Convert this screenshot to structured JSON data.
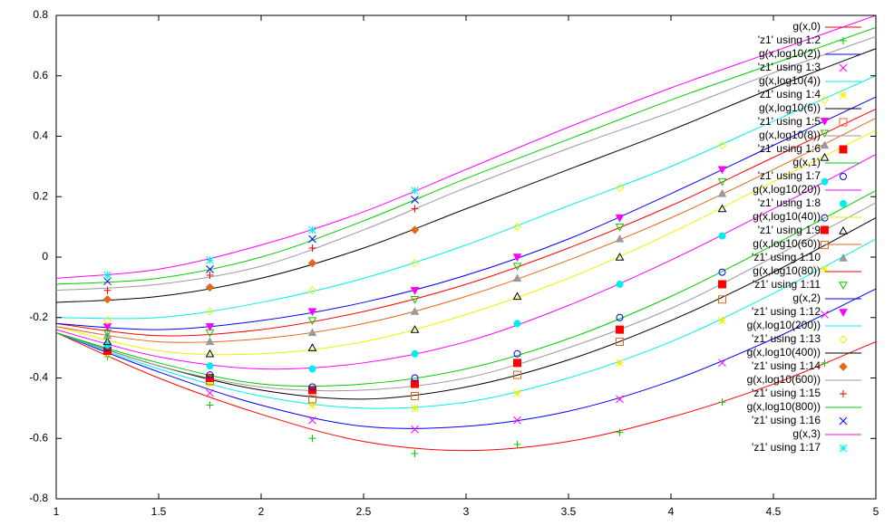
{
  "chart_data": {
    "type": "line",
    "xlim": [
      1,
      5
    ],
    "ylim": [
      -0.8,
      0.8
    ],
    "xticks": [
      1,
      1.5,
      2,
      2.5,
      3,
      3.5,
      4,
      4.5,
      5
    ],
    "yticks": [
      -0.8,
      -0.6,
      -0.4,
      -0.2,
      0,
      0.2,
      0.4,
      0.6,
      0.8
    ],
    "grid": false,
    "legend": "top-right",
    "series": [
      {
        "name": "g(x,0)",
        "type": "line",
        "color": "#ff0000",
        "x": [
          1,
          1.5,
          2,
          2.5,
          3,
          3.5,
          4,
          4.5,
          5
        ],
        "values": [
          -0.25,
          -0.4,
          -0.52,
          -0.61,
          -0.64,
          -0.61,
          -0.53,
          -0.42,
          -0.28
        ]
      },
      {
        "name": "'z1' using 1:2",
        "type": "scatter",
        "marker": "plus",
        "color": "#00cc00",
        "x": [
          1.25,
          1.75,
          2.25,
          2.75,
          3.25,
          3.75,
          4.25,
          4.75
        ],
        "values": [
          -0.33,
          -0.49,
          -0.6,
          -0.65,
          -0.62,
          -0.58,
          -0.48,
          -0.35
        ]
      },
      {
        "name": "g(x,log10(2))",
        "type": "line",
        "color": "#0000ff",
        "x": [
          1,
          1.5,
          2,
          2.5,
          3,
          3.5,
          4,
          4.5,
          5
        ],
        "values": [
          -0.25,
          -0.38,
          -0.49,
          -0.56,
          -0.56,
          -0.51,
          -0.41,
          -0.27,
          -0.105
        ]
      },
      {
        "name": "'z1' using 1:3",
        "type": "scatter",
        "marker": "cross",
        "color": "#ff00ff",
        "x": [
          1.25,
          1.75,
          2.25,
          2.75,
          3.25,
          3.75,
          4.25,
          4.75
        ],
        "values": [
          -0.32,
          -0.45,
          -0.54,
          -0.57,
          -0.54,
          -0.47,
          -0.35,
          -0.19
        ]
      },
      {
        "name": "g(x,log10(4))",
        "type": "line",
        "color": "#00eeee",
        "x": [
          1,
          1.5,
          2,
          2.5,
          3,
          3.5,
          4,
          4.5,
          5
        ],
        "values": [
          -0.25,
          -0.37,
          -0.46,
          -0.5,
          -0.48,
          -0.4,
          -0.28,
          -0.12,
          0.06
        ]
      },
      {
        "name": "'z1' using 1:4",
        "type": "scatter",
        "marker": "star",
        "color": "#f0f000",
        "x": [
          1.25,
          1.75,
          2.25,
          2.75,
          3.25,
          3.75,
          4.25,
          4.75
        ],
        "values": [
          -0.32,
          -0.42,
          -0.49,
          -0.5,
          -0.45,
          -0.35,
          -0.21,
          -0.04
        ]
      },
      {
        "name": "g(x,log10(6))",
        "type": "line",
        "color": "#000000",
        "x": [
          1,
          1.5,
          2,
          2.5,
          3,
          3.5,
          4,
          4.5,
          5
        ],
        "values": [
          -0.25,
          -0.36,
          -0.44,
          -0.47,
          -0.43,
          -0.34,
          -0.21,
          -0.05,
          0.13
        ]
      },
      {
        "name": "'z1' using 1:5",
        "type": "scatter",
        "marker": "square-open",
        "color": "#e0681a",
        "x": [
          1.25,
          1.75,
          2.25,
          2.75,
          3.25,
          3.75,
          4.25,
          4.75
        ],
        "values": [
          -0.31,
          -0.41,
          -0.47,
          -0.46,
          -0.39,
          -0.28,
          -0.14,
          0.04
        ]
      },
      {
        "name": "g(x,log10(8))",
        "type": "line",
        "color": "#999999",
        "x": [
          1,
          1.5,
          2,
          2.5,
          3,
          3.5,
          4,
          4.5,
          5
        ],
        "values": [
          -0.25,
          -0.36,
          -0.43,
          -0.44,
          -0.4,
          -0.3,
          -0.17,
          0.0,
          0.18
        ]
      },
      {
        "name": "'z1' using 1:6",
        "type": "scatter",
        "marker": "square",
        "color": "#ff0000",
        "x": [
          1.25,
          1.75,
          2.25,
          2.75,
          3.25,
          3.75,
          4.25,
          4.75
        ],
        "values": [
          -0.31,
          -0.4,
          -0.44,
          -0.42,
          -0.35,
          -0.24,
          -0.09,
          0.09
        ]
      },
      {
        "name": "g(x,1)",
        "type": "line",
        "color": "#00cc00",
        "x": [
          1,
          1.5,
          2,
          2.5,
          3,
          3.5,
          4,
          4.5,
          5
        ],
        "values": [
          -0.25,
          -0.35,
          -0.42,
          -0.42,
          -0.37,
          -0.27,
          -0.13,
          0.04,
          0.22
        ]
      },
      {
        "name": "'z1' using 1:7",
        "type": "scatter",
        "marker": "circle-open",
        "color": "#0000ff",
        "x": [
          1.25,
          1.75,
          2.25,
          2.75,
          3.25,
          3.75,
          4.25,
          4.75
        ],
        "values": [
          -0.3,
          -0.39,
          -0.43,
          -0.4,
          -0.32,
          -0.2,
          -0.05,
          0.13
        ]
      },
      {
        "name": "g(x,log10(20))",
        "type": "line",
        "color": "#ff00ff",
        "x": [
          1,
          1.5,
          2,
          2.5,
          3,
          3.5,
          4,
          4.5,
          5
        ],
        "values": [
          -0.24,
          -0.33,
          -0.37,
          -0.35,
          -0.28,
          -0.16,
          -0.01,
          0.16,
          0.34
        ]
      },
      {
        "name": "'z1' using 1:8",
        "type": "scatter",
        "marker": "circle",
        "color": "#00eeee",
        "x": [
          1.25,
          1.75,
          2.25,
          2.75,
          3.25,
          3.75,
          4.25,
          4.75
        ],
        "values": [
          -0.29,
          -0.36,
          -0.37,
          -0.32,
          -0.22,
          -0.09,
          0.07,
          0.25
        ]
      },
      {
        "name": "g(x,log10(40))",
        "type": "line",
        "color": "#f0f000",
        "x": [
          1,
          1.5,
          2,
          2.5,
          3,
          3.5,
          4,
          4.5,
          5
        ],
        "values": [
          -0.23,
          -0.31,
          -0.32,
          -0.28,
          -0.19,
          -0.07,
          0.08,
          0.25,
          0.42
        ]
      },
      {
        "name": "'z1' using 1:9",
        "type": "scatter",
        "marker": "triangle-open",
        "color": "#000000",
        "x": [
          1.25,
          1.75,
          2.25,
          2.75,
          3.25,
          3.75,
          4.25,
          4.75
        ],
        "values": [
          -0.28,
          -0.32,
          -0.3,
          -0.24,
          -0.13,
          0.0,
          0.16,
          0.33
        ]
      },
      {
        "name": "g(x,log10(60))",
        "type": "line",
        "color": "#e0681a",
        "x": [
          1,
          1.5,
          2,
          2.5,
          3,
          3.5,
          4,
          4.5,
          5
        ],
        "values": [
          -0.23,
          -0.28,
          -0.27,
          -0.22,
          -0.13,
          -0.01,
          0.13,
          0.29,
          0.46
        ]
      },
      {
        "name": "'z1' using 1:10",
        "type": "scatter",
        "marker": "triangle",
        "color": "#999999",
        "x": [
          1.25,
          1.75,
          2.25,
          2.75,
          3.25,
          3.75,
          4.25,
          4.75
        ],
        "values": [
          -0.26,
          -0.28,
          -0.25,
          -0.18,
          -0.07,
          0.06,
          0.21,
          0.37
        ]
      },
      {
        "name": "g(x,log10(80))",
        "type": "line",
        "color": "#ff0000",
        "x": [
          1,
          1.5,
          2,
          2.5,
          3,
          3.5,
          4,
          4.5,
          5
        ],
        "values": [
          -0.22,
          -0.26,
          -0.24,
          -0.18,
          -0.09,
          0.03,
          0.17,
          0.33,
          0.49
        ]
      },
      {
        "name": "'z1' using 1:11",
        "type": "scatter",
        "marker": "triangle-down-open",
        "color": "#00cc00",
        "x": [
          1.25,
          1.75,
          2.25,
          2.75,
          3.25,
          3.75,
          4.25,
          4.75
        ],
        "values": [
          -0.25,
          -0.25,
          -0.21,
          -0.14,
          -0.03,
          0.1,
          0.25,
          0.41
        ]
      },
      {
        "name": "g(x,2)",
        "type": "line",
        "color": "#0000ff",
        "x": [
          1,
          1.5,
          2,
          2.5,
          3,
          3.5,
          4,
          4.5,
          5
        ],
        "values": [
          -0.22,
          -0.24,
          -0.21,
          -0.15,
          -0.06,
          0.06,
          0.21,
          0.37,
          0.53
        ]
      },
      {
        "name": "'z1' using 1:12",
        "type": "scatter",
        "marker": "triangle-down",
        "color": "#ff00ff",
        "x": [
          1.25,
          1.75,
          2.25,
          2.75,
          3.25,
          3.75,
          4.25,
          4.75
        ],
        "values": [
          -0.23,
          -0.23,
          -0.18,
          -0.11,
          0.0,
          0.13,
          0.29,
          0.45
        ]
      },
      {
        "name": "g(x,log10(200))",
        "type": "line",
        "color": "#00eeee",
        "x": [
          1,
          1.5,
          2,
          2.5,
          3,
          3.5,
          4,
          4.5,
          5
        ],
        "values": [
          -0.2,
          -0.2,
          -0.15,
          -0.07,
          0.04,
          0.17,
          0.3,
          0.45,
          0.6
        ]
      },
      {
        "name": "'z1' using 1:13",
        "type": "scatter",
        "marker": "diamond-open",
        "color": "#f0f000",
        "x": [
          1.25,
          1.75,
          2.25,
          2.75,
          3.25,
          3.75,
          4.25,
          4.75
        ],
        "values": [
          -0.21,
          -0.18,
          -0.11,
          -0.02,
          0.1,
          0.23,
          0.37,
          0.52
        ]
      },
      {
        "name": "g(x,log10(400))",
        "type": "line",
        "color": "#000000",
        "x": [
          1,
          1.5,
          2,
          2.5,
          3,
          3.5,
          4,
          4.5,
          5
        ],
        "values": [
          -0.15,
          -0.13,
          -0.07,
          0.03,
          0.16,
          0.29,
          0.42,
          0.56,
          0.69
        ]
      },
      {
        "name": "'z1' using 1:14",
        "type": "scatter",
        "marker": "diamond",
        "color": "#e0681a",
        "x": [
          1.25,
          1.75,
          2.25,
          2.75,
          3.25,
          3.75,
          4.25,
          4.75
        ],
        "values": [
          -0.14,
          -0.1,
          -0.02,
          0.09,
          null,
          null,
          null,
          null
        ]
      },
      {
        "name": "g(x,log10(600))",
        "type": "line",
        "color": "#999999",
        "x": [
          1,
          1.5,
          2,
          2.5,
          3,
          3.5,
          4,
          4.5,
          5
        ],
        "values": [
          -0.11,
          -0.09,
          -0.03,
          0.09,
          0.23,
          0.36,
          0.48,
          0.61,
          0.73
        ]
      },
      {
        "name": "'z1' using 1:15",
        "type": "scatter",
        "marker": "plus",
        "color": "#ff0000",
        "x": [
          1.25,
          1.75,
          2.25,
          2.75,
          3.25,
          3.75,
          4.25,
          4.75
        ],
        "values": [
          -0.11,
          -0.06,
          0.03,
          0.16,
          null,
          null,
          null,
          null
        ]
      },
      {
        "name": "g(x,log10(800))",
        "type": "line",
        "color": "#00cc00",
        "x": [
          1,
          1.5,
          2,
          2.5,
          3,
          3.5,
          4,
          4.5,
          5
        ],
        "values": [
          -0.09,
          -0.07,
          0.0,
          0.12,
          0.26,
          0.39,
          0.52,
          0.64,
          0.76
        ]
      },
      {
        "name": "'z1' using 1:16",
        "type": "scatter",
        "marker": "cross",
        "color": "#0000ff",
        "x": [
          1.25,
          1.75,
          2.25,
          2.75,
          3.25,
          3.75,
          4.25,
          4.75
        ],
        "values": [
          -0.08,
          -0.04,
          0.06,
          0.19,
          null,
          null,
          null,
          null
        ]
      },
      {
        "name": "g(x,3)",
        "type": "line",
        "color": "#ff00ff",
        "x": [
          1,
          1.5,
          2,
          2.5,
          3,
          3.5,
          4,
          4.5,
          5
        ],
        "values": [
          -0.07,
          -0.04,
          0.04,
          0.15,
          0.29,
          0.43,
          0.56,
          0.68,
          0.8
        ]
      },
      {
        "name": "'z1' using 1:17",
        "type": "scatter",
        "marker": "star",
        "color": "#00eeee",
        "x": [
          1.25,
          1.75,
          2.25,
          2.75,
          3.25,
          3.75,
          4.25,
          4.75
        ],
        "values": [
          -0.06,
          -0.01,
          0.09,
          0.22,
          null,
          null,
          null,
          null
        ]
      }
    ]
  }
}
